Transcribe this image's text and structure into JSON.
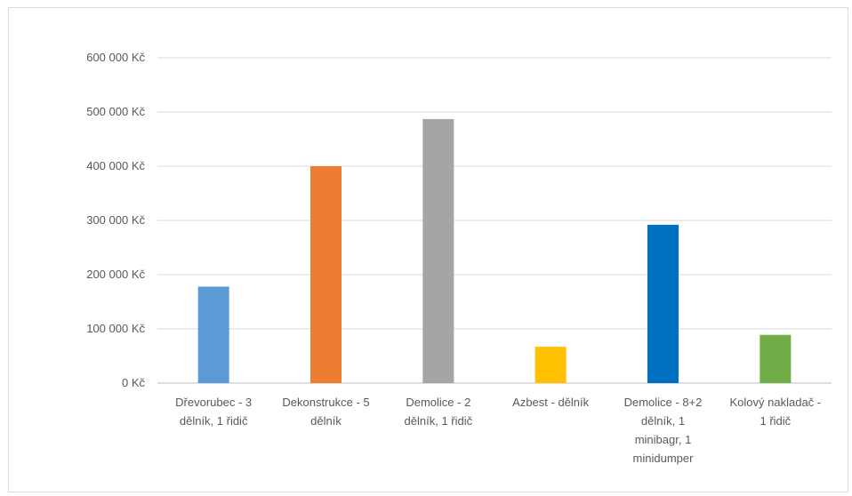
{
  "chart_data": {
    "type": "bar",
    "title": "",
    "xlabel": "",
    "ylabel": "",
    "ylim": [
      0,
      600000
    ],
    "ytick_step": 100000,
    "ytick_labels": [
      "0 Kč",
      "100 000 Kč",
      "200 000 Kč",
      "300 000 Kč",
      "400 000 Kč",
      "500 000 Kč",
      "600 000 Kč"
    ],
    "grid": true,
    "legend": "none",
    "categories": [
      "Dřevorubec - 3 dělník, 1 řidič",
      "Dekonstrukce - 5 dělník",
      "Demolice - 2 dělník, 1 řidič",
      "Azbest - dělník",
      "Demolice - 8+2 dělník, 1 minibagr, 1 minidumper",
      "Kolový nakladač - 1 řidič"
    ],
    "category_label_lines": [
      [
        "Dřevorubec - 3",
        "dělník, 1 řidič"
      ],
      [
        "Dekonstrukce - 5",
        "dělník"
      ],
      [
        "Demolice - 2",
        "dělník, 1 řidič"
      ],
      [
        "Azbest - dělník"
      ],
      [
        "Demolice - 8+2",
        "dělník, 1",
        "minibagr, 1",
        "minidumper"
      ],
      [
        "Kolový nakladač -",
        "1 řidič"
      ]
    ],
    "values": [
      178000,
      400000,
      487000,
      67000,
      292000,
      89000
    ],
    "colors": [
      "#5b9bd5",
      "#ed7d31",
      "#a5a5a5",
      "#ffc000",
      "#0070c0",
      "#70ad47"
    ]
  }
}
